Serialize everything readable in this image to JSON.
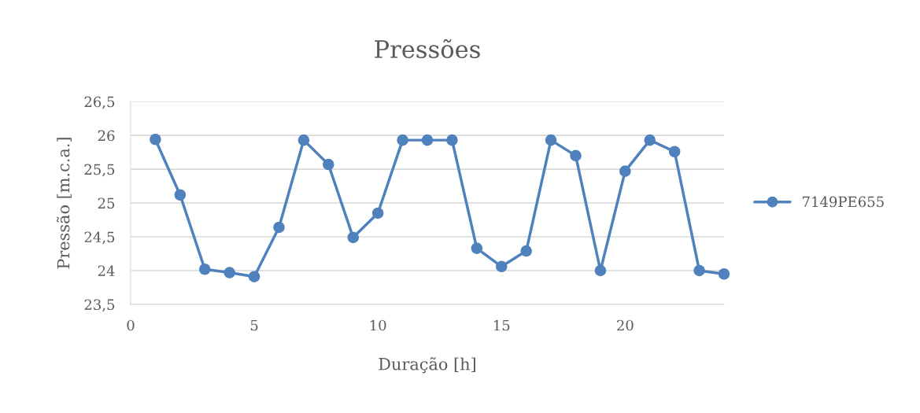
{
  "chart_data": {
    "type": "line",
    "title": "Pressões",
    "xlabel": "Duração [h]",
    "ylabel": "Pressão [m.c.a.]",
    "x": [
      1,
      2,
      3,
      4,
      5,
      6,
      7,
      8,
      9,
      10,
      11,
      12,
      13,
      14,
      15,
      16,
      17,
      18,
      19,
      20,
      21,
      22,
      23,
      24
    ],
    "series": [
      {
        "name": "7149PE655",
        "color": "#4f81bd",
        "values": [
          25.94,
          25.12,
          24.02,
          23.97,
          23.91,
          24.64,
          25.93,
          25.57,
          24.49,
          24.85,
          25.93,
          25.93,
          25.93,
          24.33,
          24.06,
          24.29,
          25.93,
          25.7,
          24.0,
          25.47,
          25.93,
          25.76,
          24.0,
          23.95
        ]
      }
    ],
    "xlim": [
      0,
      24
    ],
    "xticks": [
      0,
      5,
      10,
      15,
      20
    ],
    "ylim": [
      23.5,
      26.5
    ],
    "yticks": [
      {
        "value": 23.5,
        "label": "23,5"
      },
      24,
      {
        "value": 24.5,
        "label": "24,5"
      },
      25,
      {
        "value": 25.5,
        "label": "25,5"
      },
      26,
      {
        "value": 26.5,
        "label": "26,5"
      }
    ],
    "grid": "y",
    "legend": "right",
    "marker": "circle",
    "line_style": "solid"
  }
}
